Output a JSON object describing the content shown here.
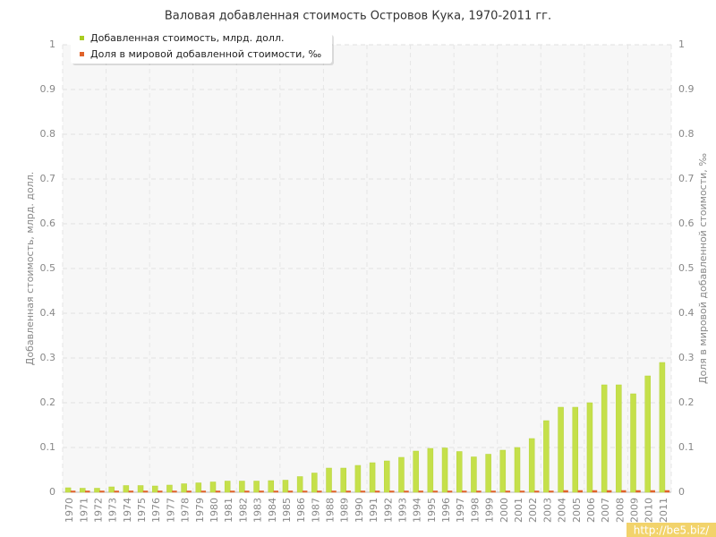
{
  "chart_data": {
    "type": "bar",
    "title": "Валовая добавленная стоимость Островов Кука, 1970-2011 гг.",
    "y_label": "Добавленная стоимость, млрд. долл.",
    "y2_label": "Доля в мировой добавленной стоимости, ‰",
    "categories": [
      "1970",
      "1971",
      "1972",
      "1973",
      "1974",
      "1975",
      "1976",
      "1977",
      "1978",
      "1979",
      "1980",
      "1981",
      "1982",
      "1983",
      "1984",
      "1985",
      "1986",
      "1987",
      "1988",
      "1989",
      "1990",
      "1991",
      "1992",
      "1993",
      "1994",
      "1995",
      "1996",
      "1997",
      "1998",
      "1999",
      "2000",
      "2001",
      "2002",
      "2003",
      "2004",
      "2005",
      "2006",
      "2007",
      "2008",
      "2009",
      "2010",
      "2011"
    ],
    "series": [
      {
        "name": "Добавленная стоимость, млрд. долл.",
        "color": "#c5e04a",
        "values": [
          0.01,
          0.009,
          0.009,
          0.012,
          0.015,
          0.015,
          0.014,
          0.016,
          0.019,
          0.021,
          0.023,
          0.025,
          0.025,
          0.025,
          0.026,
          0.027,
          0.035,
          0.043,
          0.054,
          0.054,
          0.06,
          0.066,
          0.07,
          0.078,
          0.092,
          0.098,
          0.099,
          0.091,
          0.079,
          0.085,
          0.094,
          0.1,
          0.12,
          0.16,
          0.19,
          0.19,
          0.2,
          0.24,
          0.24,
          0.22,
          0.26,
          0.29
        ]
      },
      {
        "name": "Доля в мировой добавленной стоимости, ‰",
        "color": "#e0622a",
        "axis": "y2",
        "values": [
          0.003,
          0.003,
          0.003,
          0.003,
          0.003,
          0.003,
          0.003,
          0.003,
          0.003,
          0.003,
          0.003,
          0.003,
          0.003,
          0.003,
          0.003,
          0.003,
          0.003,
          0.003,
          0.003,
          0.003,
          0.003,
          0.003,
          0.003,
          0.003,
          0.003,
          0.003,
          0.003,
          0.003,
          0.003,
          0.003,
          0.003,
          0.003,
          0.003,
          0.003,
          0.004,
          0.004,
          0.004,
          0.004,
          0.004,
          0.004,
          0.004,
          0.004
        ]
      }
    ],
    "ylim": [
      0,
      1
    ],
    "yticks": [
      0,
      0.1,
      0.2,
      0.3,
      0.4,
      0.5,
      0.6,
      0.7,
      0.8,
      0.9,
      1
    ],
    "y2lim": [
      0,
      1
    ],
    "y2ticks": [
      0,
      0.1,
      0.2,
      0.3,
      0.4,
      0.5,
      0.6,
      0.7,
      0.8,
      0.9,
      1
    ],
    "grid": true,
    "legend": "upper left",
    "watermark": "http://be5.biz/"
  }
}
